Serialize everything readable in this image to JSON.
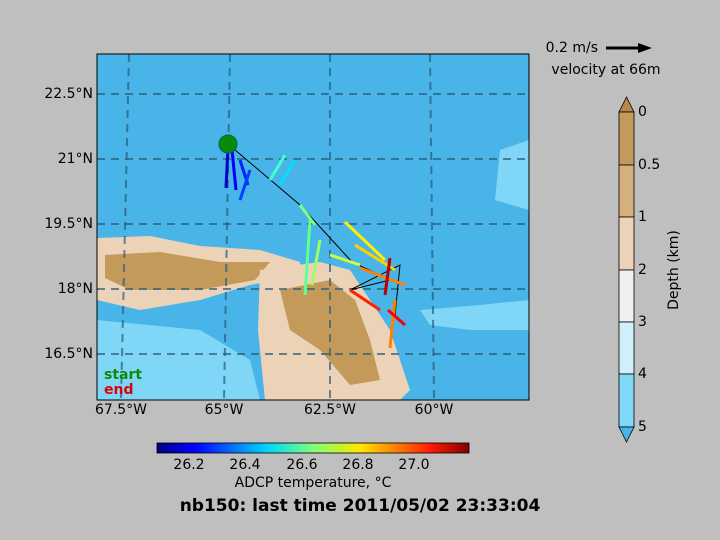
{
  "map": {
    "title": "nb150: last time 2011/05/02 23:33:04",
    "x_ticks": [
      "67.5°W",
      "65°W",
      "62.5°W",
      "60°W"
    ],
    "y_ticks": [
      "22.5°N",
      "21°N",
      "19.5°N",
      "18°N",
      "16.5°N"
    ],
    "start_label": "start",
    "end_label": "end",
    "scale_arrow_label": "0.2 m/s",
    "scale_depth_label": "velocity at 66m",
    "depth_colorbar": {
      "label": "Depth (km)",
      "ticks": [
        "0",
        "0.5",
        "1",
        "2",
        "3",
        "4",
        "5"
      ]
    },
    "temperature_colorbar": {
      "label": "ADCP temperature, °C",
      "ticks": [
        "26.2",
        "26.4",
        "26.6",
        "26.8",
        "27.0"
      ]
    }
  }
}
